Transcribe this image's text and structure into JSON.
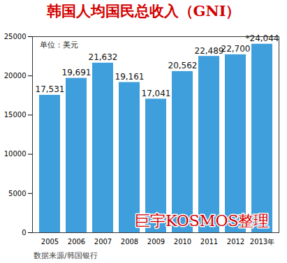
{
  "chart_data": {
    "type": "bar",
    "title": "韩国人均国民总收入（GNI）",
    "categories": [
      "2005",
      "2006",
      "2007",
      "2008",
      "2009",
      "2010",
      "2011",
      "2012",
      "2013年"
    ],
    "values": [
      17531,
      19691,
      21632,
      19161,
      17041,
      20562,
      22489,
      22700,
      24044
    ],
    "value_labels": [
      "17,531",
      "19,691",
      "21,632",
      "19,161",
      "17,041",
      "20,562",
      "22,489",
      "22,700",
      "*24,044"
    ],
    "color": "#3f9fdc",
    "ylim": [
      0,
      25000
    ],
    "yticks": [
      0,
      5000,
      10000,
      15000,
      20000,
      25000
    ],
    "grid": false,
    "data_labels": true,
    "annotations": [
      {
        "text": "单位：美元"
      },
      {
        "text": "巨宇KOSMOS整理"
      }
    ],
    "caption": "数据来源/韩国银行"
  }
}
